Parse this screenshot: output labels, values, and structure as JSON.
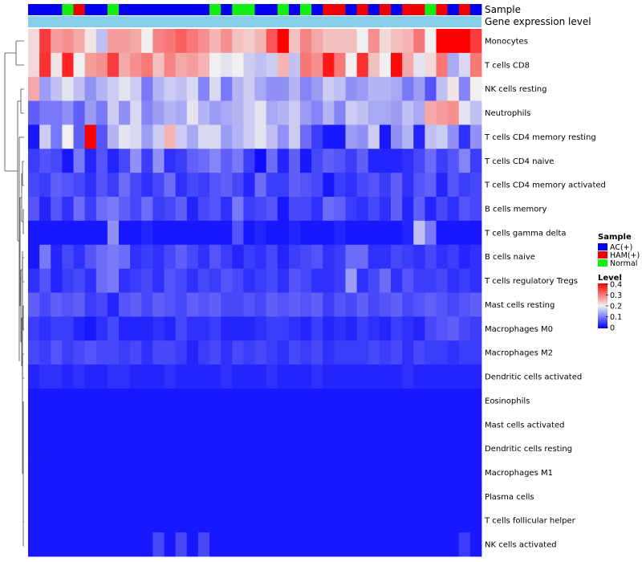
{
  "chart_data": {
    "type": "heatmap",
    "annotation_labels": [
      "Sample",
      "Gene expression level"
    ],
    "sample_groups": [
      "AC(+)",
      "AC(+)",
      "AC(+)",
      "Normal",
      "HAM(+)",
      "AC(+)",
      "AC(+)",
      "Normal",
      "AC(+)",
      "AC(+)",
      "AC(+)",
      "AC(+)",
      "AC(+)",
      "AC(+)",
      "AC(+)",
      "AC(+)",
      "Normal",
      "AC(+)",
      "Normal",
      "Normal",
      "AC(+)",
      "AC(+)",
      "Normal",
      "AC(+)",
      "Normal",
      "AC(+)",
      "HAM(+)",
      "HAM(+)",
      "AC(+)",
      "HAM(+)",
      "AC(+)",
      "HAM(+)",
      "AC(+)",
      "HAM(+)",
      "HAM(+)",
      "Normal",
      "HAM(+)",
      "AC(+)",
      "HAM(+)",
      "AC(+)"
    ],
    "rows": [
      "Monocytes",
      "T cells CD8",
      "NK cells resting",
      "Neutrophils",
      "T cells CD4 memory resting",
      "T cells CD4 naive",
      "T cells CD4 memory activated",
      "B cells memory",
      "T cells gamma delta",
      "B cells naive",
      "T cells regulatory  Tregs",
      "Mast cells resting",
      "Macrophages M0",
      "Macrophages M2",
      "Dendritic cells activated",
      "Eosinophils",
      "Mast cells activated",
      "Dendritic cells resting",
      "Macrophages M1",
      "Plasma cells",
      "T cells follicular helper",
      "NK cells activated"
    ],
    "values": [
      [
        0.22,
        0.35,
        0.27,
        0.28,
        0.26,
        0.21,
        0.16,
        0.27,
        0.27,
        0.26,
        0.2,
        0.29,
        0.3,
        0.32,
        0.3,
        0.28,
        0.25,
        0.28,
        0.24,
        0.23,
        0.25,
        0.33,
        0.4,
        0.24,
        0.29,
        0.26,
        0.24,
        0.24,
        0.24,
        0.2,
        0.28,
        0.22,
        0.24,
        0.25,
        0.3,
        0.2,
        0.4,
        0.4,
        0.4,
        0.35
      ],
      [
        0.22,
        0.36,
        0.21,
        0.37,
        0.2,
        0.27,
        0.28,
        0.35,
        0.26,
        0.28,
        0.3,
        0.24,
        0.29,
        0.26,
        0.27,
        0.25,
        0.2,
        0.19,
        0.2,
        0.17,
        0.16,
        0.17,
        0.25,
        0.16,
        0.3,
        0.28,
        0.38,
        0.3,
        0.2,
        0.36,
        0.24,
        0.2,
        0.39,
        0.26,
        0.19,
        0.22,
        0.3,
        0.14,
        0.18,
        0.3
      ],
      [
        0.26,
        0.13,
        0.16,
        0.19,
        0.16,
        0.12,
        0.15,
        0.17,
        0.19,
        0.17,
        0.1,
        0.15,
        0.17,
        0.16,
        0.18,
        0.11,
        0.18,
        0.1,
        0.15,
        0.17,
        0.14,
        0.12,
        0.12,
        0.15,
        0.11,
        0.13,
        0.17,
        0.16,
        0.12,
        0.13,
        0.15,
        0.15,
        0.14,
        0.1,
        0.13,
        0.07,
        0.16,
        0.21,
        0.11,
        0.2
      ],
      [
        0.08,
        0.1,
        0.1,
        0.12,
        0.08,
        0.13,
        0.1,
        0.17,
        0.12,
        0.18,
        0.11,
        0.13,
        0.15,
        0.14,
        0.19,
        0.15,
        0.13,
        0.14,
        0.15,
        0.17,
        0.19,
        0.14,
        0.15,
        0.17,
        0.13,
        0.11,
        0.15,
        0.11,
        0.17,
        0.16,
        0.14,
        0.14,
        0.13,
        0.16,
        0.14,
        0.26,
        0.27,
        0.28,
        0.19,
        0.16
      ],
      [
        0.02,
        0.17,
        0.1,
        0.2,
        0.08,
        0.4,
        0.07,
        0.15,
        0.19,
        0.18,
        0.13,
        0.17,
        0.25,
        0.17,
        0.14,
        0.18,
        0.18,
        0.13,
        0.15,
        0.17,
        0.19,
        0.16,
        0.12,
        0.17,
        0.09,
        0.05,
        0.02,
        0.02,
        0.13,
        0.12,
        0.17,
        0.02,
        0.12,
        0.15,
        0.03,
        0.16,
        0.17,
        0.12,
        0.04,
        0.12
      ],
      [
        0.05,
        0.07,
        0.06,
        0.02,
        0.1,
        0.03,
        0.07,
        0.03,
        0.06,
        0.12,
        0.05,
        0.12,
        0.04,
        0.05,
        0.08,
        0.09,
        0.11,
        0.08,
        0.1,
        0.05,
        0.01,
        0.09,
        0.03,
        0.08,
        0.02,
        0.06,
        0.08,
        0.07,
        0.05,
        0.08,
        0.03,
        0.03,
        0.03,
        0.04,
        0.06,
        0.09,
        0.05,
        0.07,
        0.11,
        0.05
      ],
      [
        0.06,
        0.05,
        0.08,
        0.07,
        0.06,
        0.04,
        0.07,
        0.05,
        0.09,
        0.06,
        0.04,
        0.06,
        0.09,
        0.04,
        0.06,
        0.05,
        0.07,
        0.08,
        0.06,
        0.03,
        0.09,
        0.05,
        0.05,
        0.08,
        0.07,
        0.06,
        0.02,
        0.05,
        0.04,
        0.06,
        0.07,
        0.05,
        0.08,
        0.04,
        0.07,
        0.08,
        0.03,
        0.07,
        0.05,
        0.06
      ],
      [
        0.07,
        0.03,
        0.07,
        0.04,
        0.09,
        0.05,
        0.09,
        0.1,
        0.08,
        0.06,
        0.09,
        0.05,
        0.06,
        0.08,
        0.03,
        0.06,
        0.07,
        0.04,
        0.1,
        0.05,
        0.06,
        0.07,
        0.02,
        0.06,
        0.06,
        0.04,
        0.09,
        0.08,
        0.05,
        0.04,
        0.06,
        0.04,
        0.08,
        0.03,
        0.08,
        0.03,
        0.06,
        0.04,
        0.07,
        0.06
      ],
      [
        0.02,
        0.02,
        0.02,
        0.02,
        0.02,
        0.02,
        0.02,
        0.12,
        0.02,
        0.02,
        0.03,
        0.02,
        0.02,
        0.02,
        0.02,
        0.02,
        0.02,
        0.02,
        0.07,
        0.02,
        0.03,
        0.02,
        0.02,
        0.03,
        0.02,
        0.02,
        0.02,
        0.03,
        0.02,
        0.02,
        0.02,
        0.02,
        0.02,
        0.03,
        0.16,
        0.1,
        0.02,
        0.02,
        0.02,
        0.02
      ],
      [
        0.02,
        0.1,
        0.03,
        0.06,
        0.04,
        0.07,
        0.09,
        0.1,
        0.09,
        0.04,
        0.05,
        0.04,
        0.06,
        0.08,
        0.06,
        0.04,
        0.07,
        0.05,
        0.03,
        0.05,
        0.04,
        0.06,
        0.03,
        0.05,
        0.06,
        0.07,
        0.04,
        0.05,
        0.09,
        0.09,
        0.04,
        0.04,
        0.06,
        0.05,
        0.04,
        0.06,
        0.04,
        0.05,
        0.03,
        0.04
      ],
      [
        0.04,
        0.07,
        0.03,
        0.05,
        0.06,
        0.04,
        0.09,
        0.1,
        0.04,
        0.05,
        0.06,
        0.04,
        0.07,
        0.06,
        0.04,
        0.06,
        0.05,
        0.07,
        0.06,
        0.04,
        0.05,
        0.06,
        0.04,
        0.07,
        0.06,
        0.04,
        0.04,
        0.05,
        0.13,
        0.04,
        0.06,
        0.09,
        0.04,
        0.07,
        0.05,
        0.05,
        0.06,
        0.04,
        0.05,
        0.04
      ],
      [
        0.08,
        0.06,
        0.08,
        0.07,
        0.08,
        0.05,
        0.06,
        0.03,
        0.07,
        0.08,
        0.06,
        0.08,
        0.07,
        0.06,
        0.08,
        0.07,
        0.08,
        0.06,
        0.06,
        0.07,
        0.06,
        0.08,
        0.07,
        0.08,
        0.07,
        0.08,
        0.05,
        0.07,
        0.06,
        0.08,
        0.06,
        0.07,
        0.08,
        0.06,
        0.07,
        0.08,
        0.07,
        0.06,
        0.07,
        0.08
      ],
      [
        0.05,
        0.04,
        0.05,
        0.05,
        0.03,
        0.02,
        0.04,
        0.06,
        0.03,
        0.03,
        0.03,
        0.04,
        0.03,
        0.06,
        0.04,
        0.04,
        0.05,
        0.03,
        0.03,
        0.03,
        0.04,
        0.05,
        0.05,
        0.04,
        0.03,
        0.05,
        0.03,
        0.04,
        0.03,
        0.05,
        0.04,
        0.03,
        0.05,
        0.04,
        0.03,
        0.06,
        0.07,
        0.08,
        0.06,
        0.05
      ],
      [
        0.06,
        0.05,
        0.07,
        0.05,
        0.06,
        0.07,
        0.06,
        0.06,
        0.05,
        0.06,
        0.04,
        0.06,
        0.06,
        0.05,
        0.03,
        0.05,
        0.06,
        0.04,
        0.06,
        0.05,
        0.06,
        0.05,
        0.04,
        0.06,
        0.05,
        0.06,
        0.04,
        0.05,
        0.05,
        0.05,
        0.06,
        0.05,
        0.06,
        0.04,
        0.06,
        0.05,
        0.05,
        0.04,
        0.05,
        0.05
      ],
      [
        0.03,
        0.04,
        0.04,
        0.03,
        0.04,
        0.03,
        0.03,
        0.04,
        0.04,
        0.03,
        0.03,
        0.03,
        0.04,
        0.03,
        0.03,
        0.03,
        0.03,
        0.04,
        0.03,
        0.03,
        0.03,
        0.04,
        0.03,
        0.03,
        0.03,
        0.04,
        0.03,
        0.03,
        0.03,
        0.03,
        0.03,
        0.03,
        0.03,
        0.04,
        0.03,
        0.03,
        0.03,
        0.03,
        0.03,
        0.03
      ],
      [
        0.02,
        0.02,
        0.02,
        0.02,
        0.02,
        0.02,
        0.02,
        0.02,
        0.02,
        0.02,
        0.02,
        0.02,
        0.02,
        0.02,
        0.02,
        0.02,
        0.02,
        0.02,
        0.02,
        0.02,
        0.02,
        0.02,
        0.02,
        0.02,
        0.02,
        0.02,
        0.02,
        0.02,
        0.02,
        0.02,
        0.02,
        0.02,
        0.02,
        0.02,
        0.02,
        0.02,
        0.02,
        0.02,
        0.02,
        0.02
      ],
      [
        0.02,
        0.02,
        0.02,
        0.02,
        0.02,
        0.02,
        0.02,
        0.02,
        0.02,
        0.02,
        0.02,
        0.02,
        0.02,
        0.02,
        0.02,
        0.02,
        0.02,
        0.02,
        0.02,
        0.02,
        0.02,
        0.02,
        0.02,
        0.02,
        0.02,
        0.02,
        0.02,
        0.02,
        0.02,
        0.02,
        0.02,
        0.02,
        0.02,
        0.02,
        0.02,
        0.02,
        0.02,
        0.02,
        0.02,
        0.02
      ],
      [
        0.02,
        0.02,
        0.02,
        0.02,
        0.02,
        0.02,
        0.02,
        0.02,
        0.02,
        0.02,
        0.02,
        0.02,
        0.02,
        0.02,
        0.02,
        0.02,
        0.02,
        0.02,
        0.02,
        0.02,
        0.02,
        0.02,
        0.02,
        0.02,
        0.02,
        0.02,
        0.02,
        0.02,
        0.02,
        0.02,
        0.02,
        0.02,
        0.02,
        0.02,
        0.02,
        0.02,
        0.02,
        0.02,
        0.02,
        0.02
      ],
      [
        0.02,
        0.02,
        0.02,
        0.02,
        0.02,
        0.02,
        0.02,
        0.02,
        0.02,
        0.02,
        0.02,
        0.02,
        0.02,
        0.02,
        0.02,
        0.02,
        0.02,
        0.02,
        0.02,
        0.02,
        0.02,
        0.02,
        0.02,
        0.02,
        0.02,
        0.02,
        0.02,
        0.02,
        0.02,
        0.02,
        0.02,
        0.02,
        0.02,
        0.02,
        0.02,
        0.02,
        0.02,
        0.02,
        0.02,
        0.02
      ],
      [
        0.02,
        0.02,
        0.02,
        0.02,
        0.02,
        0.02,
        0.02,
        0.02,
        0.02,
        0.02,
        0.02,
        0.02,
        0.02,
        0.02,
        0.02,
        0.02,
        0.02,
        0.02,
        0.02,
        0.02,
        0.02,
        0.02,
        0.02,
        0.02,
        0.02,
        0.02,
        0.02,
        0.02,
        0.02,
        0.02,
        0.02,
        0.02,
        0.02,
        0.02,
        0.02,
        0.02,
        0.02,
        0.02,
        0.02,
        0.02
      ],
      [
        0.02,
        0.02,
        0.02,
        0.02,
        0.02,
        0.02,
        0.02,
        0.02,
        0.02,
        0.02,
        0.02,
        0.02,
        0.02,
        0.02,
        0.02,
        0.02,
        0.02,
        0.02,
        0.02,
        0.02,
        0.02,
        0.02,
        0.02,
        0.02,
        0.02,
        0.02,
        0.02,
        0.02,
        0.02,
        0.02,
        0.02,
        0.02,
        0.02,
        0.02,
        0.02,
        0.02,
        0.02,
        0.02,
        0.02,
        0.02
      ],
      [
        0.02,
        0.02,
        0.02,
        0.02,
        0.02,
        0.02,
        0.02,
        0.02,
        0.02,
        0.02,
        0.02,
        0.06,
        0.02,
        0.06,
        0.02,
        0.06,
        0.02,
        0.02,
        0.02,
        0.02,
        0.02,
        0.02,
        0.02,
        0.02,
        0.02,
        0.02,
        0.02,
        0.02,
        0.02,
        0.02,
        0.02,
        0.02,
        0.02,
        0.02,
        0.02,
        0.02,
        0.02,
        0.02,
        0.05,
        0.02
      ]
    ],
    "legend": {
      "sample_title": "Sample",
      "sample_entries": [
        {
          "label": "AC(+)",
          "color": "#0000ee"
        },
        {
          "label": "HAM(+)",
          "color": "#ee0000"
        },
        {
          "label": "Normal",
          "color": "#11ee11"
        }
      ],
      "level_title": "Level",
      "level_ticks": [
        "0.4",
        "0.3",
        "0.2",
        "0.1",
        "0"
      ],
      "range": [
        0,
        0.4
      ]
    },
    "colors": {
      "low": "#0000ff",
      "mid": "#f0f0f0",
      "high": "#ff0000",
      "gene_expression_bar": "#87ceeb"
    }
  }
}
